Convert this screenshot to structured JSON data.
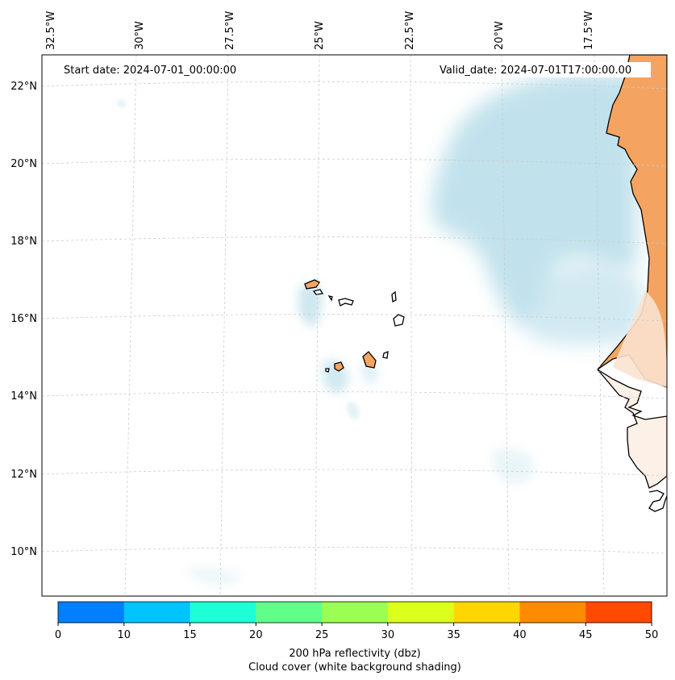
{
  "map": {
    "start_date": "Start date: 2024-07-01_00:00:00",
    "valid_date": "Valid_date: 2024-07-01T17:00:00.00",
    "lon_labels": [
      "32.5°W",
      "30°W",
      "27.5°W",
      "25°W",
      "22.5°W",
      "20°W",
      "17.5°W"
    ],
    "lat_labels": [
      "22°N",
      "20°N",
      "18°N",
      "16°N",
      "14°N",
      "12°N",
      "10°N"
    ],
    "colors": {
      "land": "#f4a460",
      "cloud_blue": "#add8e6",
      "coast": "#000000",
      "grid": "#cccccc"
    }
  },
  "colorbar": {
    "ticks": [
      "0",
      "10",
      "15",
      "20",
      "25",
      "30",
      "35",
      "40",
      "45",
      "50"
    ],
    "colors": [
      "#0080ff",
      "#00c4ff",
      "#1effd8",
      "#60ff8a",
      "#9aff52",
      "#dcff1e",
      "#ffd700",
      "#ff8c00",
      "#ff4a00"
    ],
    "label_line1": "200 hPa reflectivity (dbz)",
    "label_line2": "Cloud cover (white background shading)"
  }
}
